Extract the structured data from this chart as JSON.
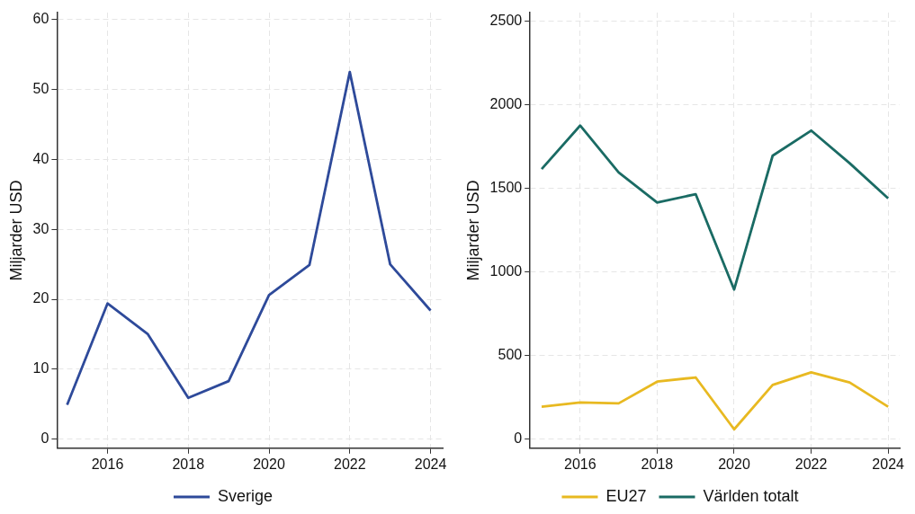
{
  "chart_data": [
    {
      "type": "line",
      "ylabel": "Miljarder USD",
      "x": [
        2015,
        2016,
        2017,
        2018,
        2019,
        2020,
        2021,
        2022,
        2023,
        2024
      ],
      "xlim": [
        2014.75,
        2024.3
      ],
      "xticks": [
        2016,
        2018,
        2020,
        2022,
        2024
      ],
      "ylim": [
        -1.3,
        61
      ],
      "yticks": [
        0,
        10,
        20,
        30,
        40,
        50,
        60
      ],
      "grid": true,
      "legend": "bottom",
      "series": [
        {
          "name": "Sverige",
          "color": "#2e4a9a",
          "values": [
            4.9,
            19.4,
            15,
            5.9,
            8.3,
            20.6,
            24.9,
            52.5,
            25,
            18.4
          ]
        }
      ]
    },
    {
      "type": "line",
      "ylabel": "Miljarder USD",
      "x": [
        2015,
        2016,
        2017,
        2018,
        2019,
        2020,
        2021,
        2022,
        2023,
        2024
      ],
      "xlim": [
        2014.7,
        2024.3
      ],
      "xticks": [
        2016,
        2018,
        2020,
        2022,
        2024
      ],
      "ylim": [
        -53,
        2550
      ],
      "yticks": [
        0,
        500,
        1000,
        1500,
        2000,
        2500
      ],
      "grid": true,
      "legend": "bottom",
      "series": [
        {
          "name": "EU27",
          "color": "#e8b921",
          "values": [
            195,
            220,
            215,
            345,
            370,
            60,
            325,
            400,
            340,
            195
          ]
        },
        {
          "name": "Världen totalt",
          "color": "#1a6b64",
          "values": [
            1615,
            1875,
            1595,
            1415,
            1465,
            895,
            1695,
            1845,
            1650,
            1440
          ]
        }
      ]
    }
  ]
}
